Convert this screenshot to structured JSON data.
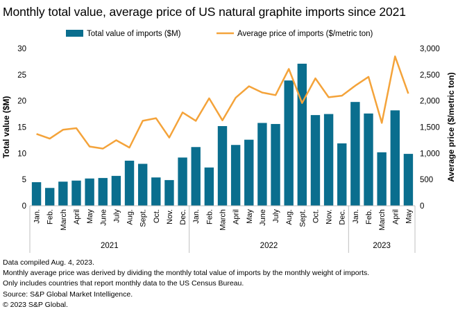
{
  "chart_data": {
    "type": "bar+line",
    "title": "Monthly total value, average price of US natural graphite imports since 2021",
    "categories": [
      "Jan.",
      "Feb.",
      "March",
      "April",
      "May",
      "June",
      "July",
      "Aug.",
      "Sept.",
      "Oct.",
      "Nov.",
      "Dec.",
      "Jan.",
      "Feb.",
      "March",
      "April",
      "May",
      "June",
      "July",
      "Aug.",
      "Sept.",
      "Oct.",
      "Nov.",
      "Dec.",
      "Jan.",
      "Feb.",
      "March",
      "April",
      "May"
    ],
    "groups": [
      {
        "label": "2021",
        "start": 0,
        "end": 11
      },
      {
        "label": "2022",
        "start": 12,
        "end": 23
      },
      {
        "label": "2023",
        "start": 24,
        "end": 28
      }
    ],
    "series": [
      {
        "name": "Total value of imports ($M)",
        "type": "bar",
        "axis": "left",
        "color": "#0a6e8e",
        "values": [
          4.5,
          3.4,
          4.6,
          4.8,
          5.2,
          5.3,
          5.7,
          8.6,
          8.0,
          5.4,
          4.9,
          9.2,
          11.2,
          7.3,
          15.2,
          11.6,
          12.6,
          15.8,
          15.6,
          23.9,
          27.1,
          17.3,
          17.5,
          11.9,
          19.8,
          17.6,
          10.2,
          18.2,
          9.9
        ]
      },
      {
        "name": "Average price of imports ($/metric ton)",
        "type": "line",
        "axis": "right",
        "color": "#f4a33a",
        "values": [
          1370,
          1280,
          1450,
          1480,
          1130,
          1090,
          1250,
          1110,
          1620,
          1670,
          1300,
          1780,
          1620,
          2050,
          1630,
          2060,
          2280,
          2160,
          2110,
          2610,
          1960,
          2430,
          2070,
          2100,
          2290,
          2460,
          1580,
          2850,
          2140
        ]
      }
    ],
    "ylabel": "Total value ($M)",
    "y2label": "Average price ($/metric ton)",
    "ylim": [
      0,
      30
    ],
    "y2lim": [
      0,
      3000
    ],
    "yticks": [
      "0",
      "5",
      "10",
      "15",
      "20",
      "25",
      "30"
    ],
    "y2ticks": [
      "0",
      "500",
      "1,000",
      "1,500",
      "2,000",
      "2,500",
      "3,000"
    ],
    "legend": "top-center",
    "grid": false
  },
  "notes": [
    "Data compiled Aug. 4, 2023.",
    "Monthly average price was derived by dividing the monthly total value of imports by the monthly weight of imports.",
    "Only includes countries that report monthly data to the US Census Bureau.",
    "Source: S&P Global Market Intelligence.",
    "© 2023 S&P Global."
  ]
}
